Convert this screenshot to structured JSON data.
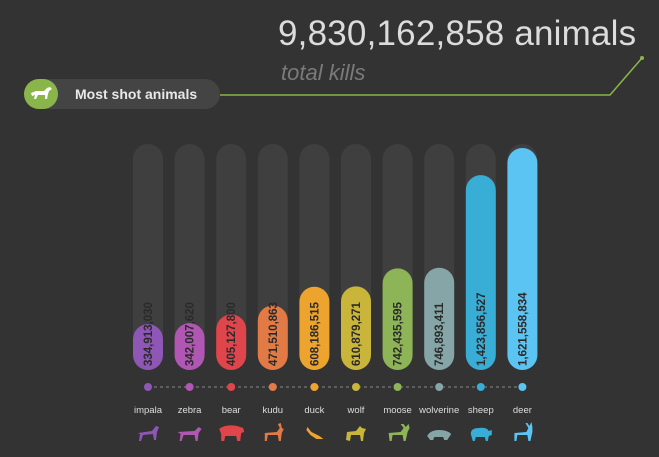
{
  "header": {
    "total_value": "9,830,162,858 animals",
    "total_caption": "total kills",
    "section_label": "Most shot animals",
    "section_icon": "horse-icon"
  },
  "colors": {
    "background": "#333333",
    "track": "#3f3f3f",
    "accent_line": "#8ab54a"
  },
  "chart_data": {
    "type": "bar",
    "categories": [
      "impala",
      "zebra",
      "bear",
      "kudu",
      "duck",
      "wolf",
      "moose",
      "wolverine",
      "sheep",
      "deer"
    ],
    "values": [
      334913030,
      342007620,
      405127800,
      471510863,
      608186515,
      610879271,
      742435595,
      746893411,
      1423856527,
      1621558834
    ],
    "value_labels": [
      "334,913,030",
      "342,007,620",
      "405,127,800",
      "471,510,863",
      "608,186,515",
      "610,879,271",
      "742,435,595",
      "746,893,411",
      "1,423,856,527",
      "1,621,558,834"
    ],
    "colors": [
      "#8e57b6",
      "#b057b4",
      "#e0454b",
      "#e27a45",
      "#eda42f",
      "#c9b53a",
      "#8db456",
      "#86a5a7",
      "#38add6",
      "#5bc4f2"
    ],
    "icons": [
      "impala-icon",
      "zebra-icon",
      "bear-icon",
      "kudu-icon",
      "duck-icon",
      "wolf-icon",
      "moose-icon",
      "wolverine-icon",
      "sheep-icon",
      "deer-icon"
    ],
    "ylim": [
      0,
      1621558834
    ],
    "title": "",
    "xlabel": "",
    "ylabel": ""
  }
}
